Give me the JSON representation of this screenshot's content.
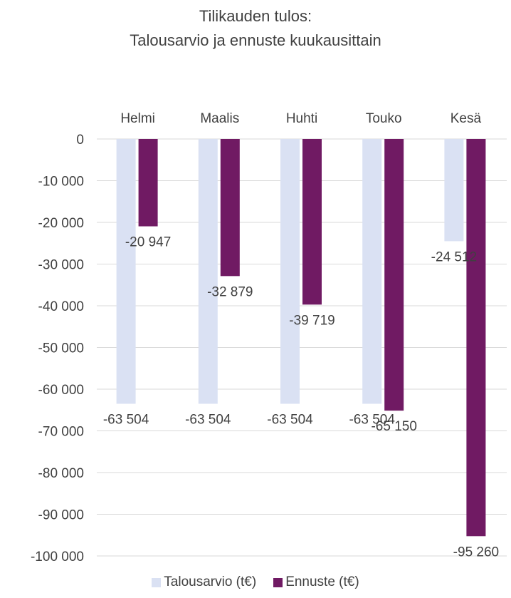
{
  "chart_data": {
    "type": "bar",
    "title": "Tilikauden tulos:",
    "subtitle": "Talousarvio ja ennuste kuukausittain",
    "categories": [
      "Helmi",
      "Maalis",
      "Huhti",
      "Touko",
      "Kesä"
    ],
    "series": [
      {
        "name": "Talousarvio (t€)",
        "color": "#dae1f3",
        "values": [
          -63504,
          -63504,
          -63504,
          -63504,
          -24512
        ],
        "labels": [
          "-63 504",
          "-63 504",
          "-63 504",
          "-63 504",
          "-24 512"
        ]
      },
      {
        "name": "Ennuste (t€)",
        "color": "#701a63",
        "values": [
          -20947,
          -32879,
          -39719,
          -65150,
          -95260
        ],
        "labels": [
          "-20 947",
          "-32 879",
          "-39 719",
          "-65 150",
          "-95 260"
        ]
      }
    ],
    "ylim": [
      -100000,
      0
    ],
    "yticks": [
      0,
      -10000,
      -20000,
      -30000,
      -40000,
      -50000,
      -60000,
      -70000,
      -80000,
      -90000,
      -100000
    ],
    "ytick_labels": [
      "0",
      "-10 000",
      "-20 000",
      "-30 000",
      "-40 000",
      "-50 000",
      "-60 000",
      "-70 000",
      "-80 000",
      "-90 000",
      "-100 000"
    ],
    "xaxis_position": "top",
    "grid": true,
    "legend_position": "bottom"
  }
}
